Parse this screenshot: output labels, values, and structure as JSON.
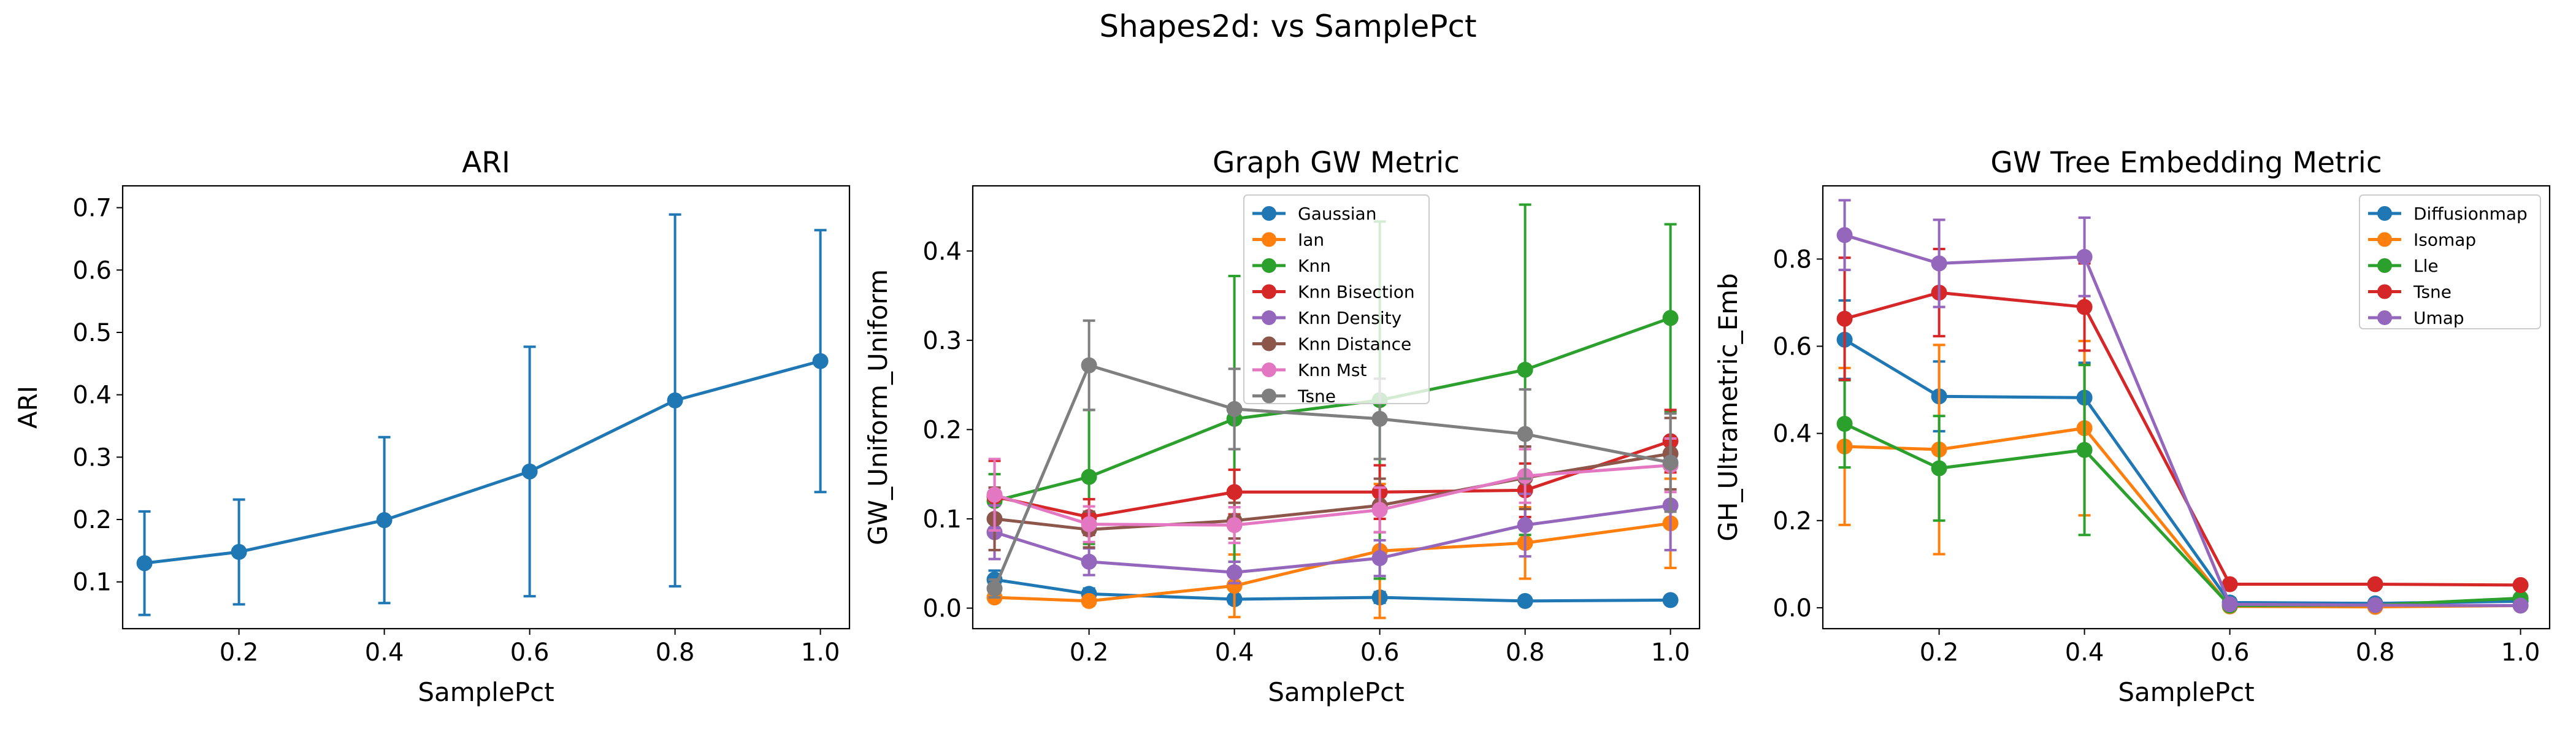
{
  "figure": {
    "suptitle": "Shapes2d: vs SamplePct"
  },
  "colors": {
    "blue": "#1f77b4",
    "orange": "#ff7f0e",
    "green": "#2ca02c",
    "red": "#d62728",
    "purple": "#9467bd",
    "brown": "#8c564b",
    "pink": "#e377c2",
    "gray": "#7f7f7f"
  },
  "chart_data": [
    {
      "type": "line",
      "title": "ARI",
      "xlabel": "SamplePct",
      "ylabel": "ARI",
      "xlim": [
        0.04,
        1.04
      ],
      "ylim": [
        0.025,
        0.735
      ],
      "xticks": [
        0.2,
        0.4,
        0.6,
        0.8,
        1.0
      ],
      "xtick_labels": [
        "0.2",
        "0.4",
        "0.6",
        "0.8",
        "1.0"
      ],
      "yticks": [
        0.1,
        0.2,
        0.3,
        0.4,
        0.5,
        0.6,
        0.7
      ],
      "ytick_labels": [
        "0.1",
        "0.2",
        "0.3",
        "0.4",
        "0.5",
        "0.6",
        "0.7"
      ],
      "grid": false,
      "legend": "none",
      "x": [
        0.07,
        0.2,
        0.4,
        0.6,
        0.8,
        1.0
      ],
      "series": [
        {
          "name": "",
          "color": "#1f77b4",
          "values": [
            0.13,
            0.148,
            0.199,
            0.277,
            0.391,
            0.454
          ],
          "errors": [
            0.083,
            0.084,
            0.133,
            0.2,
            0.298,
            0.21
          ]
        }
      ]
    },
    {
      "type": "line",
      "title": "Graph GW Metric",
      "xlabel": "SamplePct",
      "ylabel": "GW_Uniform_Uniform",
      "xlim": [
        0.04,
        1.04
      ],
      "ylim": [
        -0.023,
        0.473
      ],
      "xticks": [
        0.2,
        0.4,
        0.6,
        0.8,
        1.0
      ],
      "xtick_labels": [
        "0.2",
        "0.4",
        "0.6",
        "0.8",
        "1.0"
      ],
      "yticks": [
        0.0,
        0.1,
        0.2,
        0.3,
        0.4
      ],
      "ytick_labels": [
        "0.0",
        "0.1",
        "0.2",
        "0.3",
        "0.4"
      ],
      "grid": false,
      "legend": "upper center",
      "x": [
        0.07,
        0.2,
        0.4,
        0.6,
        0.8,
        1.0
      ],
      "series": [
        {
          "name": "Gaussian",
          "color": "#1f77b4",
          "values": [
            0.032,
            0.016,
            0.01,
            0.012,
            0.008,
            0.009
          ],
          "errors": [
            0.01,
            0.006,
            0.005,
            0.006,
            0.004,
            0.004
          ]
        },
        {
          "name": "Ian",
          "color": "#ff7f0e",
          "values": [
            0.012,
            0.008,
            0.025,
            0.064,
            0.073,
            0.095
          ],
          "errors": [
            0.005,
            0.005,
            0.035,
            0.075,
            0.04,
            0.05
          ]
        },
        {
          "name": "Knn",
          "color": "#2ca02c",
          "values": [
            0.12,
            0.147,
            0.212,
            0.233,
            0.267,
            0.325
          ],
          "errors": [
            0.03,
            0.075,
            0.16,
            0.2,
            0.185,
            0.105
          ]
        },
        {
          "name": "Knn Bisection",
          "color": "#d62728",
          "values": [
            0.125,
            0.102,
            0.13,
            0.13,
            0.132,
            0.187
          ],
          "errors": [
            0.04,
            0.02,
            0.025,
            0.03,
            0.03,
            0.035
          ]
        },
        {
          "name": "Knn Density",
          "color": "#9467bd",
          "values": [
            0.085,
            0.052,
            0.04,
            0.056,
            0.093,
            0.115
          ],
          "errors": [
            0.03,
            0.015,
            0.012,
            0.02,
            0.035,
            0.05
          ]
        },
        {
          "name": "Knn Distance",
          "color": "#8c564b",
          "values": [
            0.1,
            0.088,
            0.098,
            0.115,
            0.146,
            0.173
          ],
          "errors": [
            0.035,
            0.02,
            0.02,
            0.03,
            0.035,
            0.04
          ]
        },
        {
          "name": "Knn Mst",
          "color": "#e377c2",
          "values": [
            0.127,
            0.094,
            0.093,
            0.11,
            0.148,
            0.16
          ],
          "errors": [
            0.04,
            0.02,
            0.02,
            0.025,
            0.03,
            0.03
          ]
        },
        {
          "name": "Tsne",
          "color": "#7f7f7f",
          "values": [
            0.022,
            0.272,
            0.223,
            0.212,
            0.195,
            0.163
          ],
          "errors": [
            0.01,
            0.05,
            0.045,
            0.045,
            0.05,
            0.055
          ]
        }
      ]
    },
    {
      "type": "line",
      "title": "GW Tree Embedding Metric",
      "xlabel": "SamplePct",
      "ylabel": "GH_Ultrametric_Emb",
      "xlim": [
        0.04,
        1.04
      ],
      "ylim": [
        -0.048,
        0.968
      ],
      "xticks": [
        0.2,
        0.4,
        0.6,
        0.8,
        1.0
      ],
      "xtick_labels": [
        "0.2",
        "0.4",
        "0.6",
        "0.8",
        "1.0"
      ],
      "yticks": [
        0.0,
        0.2,
        0.4,
        0.6,
        0.8
      ],
      "ytick_labels": [
        "0.0",
        "0.2",
        "0.4",
        "0.6",
        "0.8"
      ],
      "grid": false,
      "legend": "upper right",
      "x": [
        0.07,
        0.2,
        0.4,
        0.6,
        0.8,
        1.0
      ],
      "series": [
        {
          "name": "Diffusionmap",
          "color": "#1f77b4",
          "values": [
            0.615,
            0.485,
            0.482,
            0.012,
            0.01,
            0.015
          ],
          "errors": [
            0.09,
            0.08,
            0.08,
            0.01,
            0.008,
            0.008
          ]
        },
        {
          "name": "Isomap",
          "color": "#ff7f0e",
          "values": [
            0.37,
            0.363,
            0.412,
            0.003,
            0.002,
            0.005
          ],
          "errors": [
            0.18,
            0.24,
            0.2,
            0.005,
            0.005,
            0.005
          ]
        },
        {
          "name": "Lle",
          "color": "#2ca02c",
          "values": [
            0.422,
            0.32,
            0.362,
            0.005,
            0.006,
            0.022
          ],
          "errors": [
            0.1,
            0.12,
            0.195,
            0.005,
            0.005,
            0.008
          ]
        },
        {
          "name": "Tsne",
          "color": "#d62728",
          "values": [
            0.663,
            0.723,
            0.69,
            0.054,
            0.054,
            0.052
          ],
          "errors": [
            0.14,
            0.1,
            0.1,
            0.005,
            0.005,
            0.005
          ]
        },
        {
          "name": "Umap",
          "color": "#9467bd",
          "values": [
            0.855,
            0.79,
            0.805,
            0.008,
            0.006,
            0.005
          ],
          "errors": [
            0.08,
            0.1,
            0.09,
            0.005,
            0.005,
            0.005
          ]
        }
      ]
    }
  ]
}
